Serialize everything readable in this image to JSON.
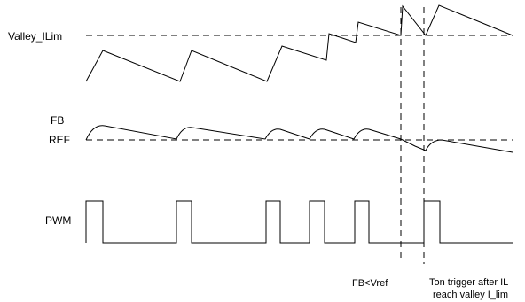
{
  "labels": {
    "valley_ilim": "Valley_ILim",
    "fb": "FB",
    "ref": "REF",
    "pwm": "PWM"
  },
  "annotations": {
    "fb_lt_vref": "FB<Vref",
    "ton_trigger_line1": "Ton trigger after IL",
    "ton_trigger_line2": "reach valley I_lim"
  }
}
